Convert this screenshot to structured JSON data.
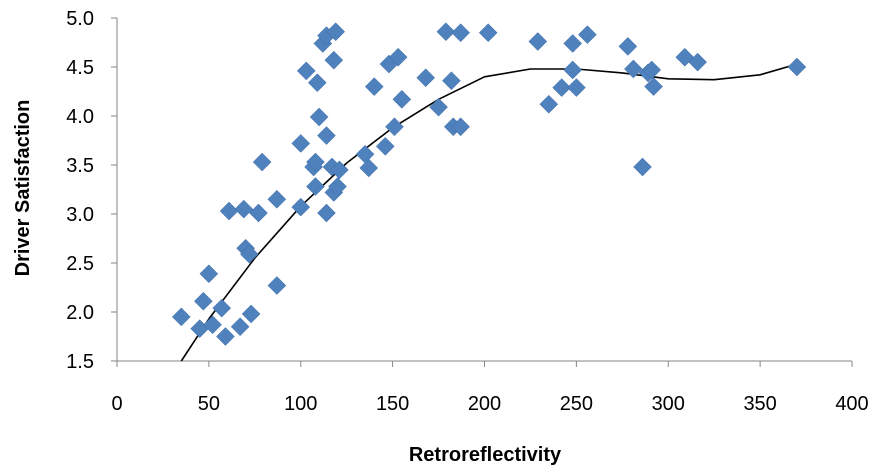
{
  "chart_data": {
    "type": "scatter",
    "xlabel": "Retroreflectivity",
    "ylabel": "Driver Satisfaction",
    "xlim": [
      0,
      400
    ],
    "ylim": [
      1.5,
      5.0
    ],
    "x_ticks": [
      0,
      50,
      100,
      150,
      200,
      250,
      300,
      350,
      400
    ],
    "y_ticks": [
      "1.5",
      "2.0",
      "2.5",
      "3.0",
      "3.5",
      "4.0",
      "4.5",
      "5.0"
    ],
    "grid": false,
    "legend": "none",
    "marker": "diamond",
    "marker_color": "#4F81BD",
    "trendline": {
      "type": "polynomial",
      "color": "#000000",
      "points": [
        [
          35,
          1.5
        ],
        [
          50,
          1.93
        ],
        [
          75,
          2.55
        ],
        [
          100,
          3.08
        ],
        [
          125,
          3.52
        ],
        [
          150,
          3.88
        ],
        [
          175,
          4.17
        ],
        [
          200,
          4.4
        ],
        [
          225,
          4.48
        ],
        [
          250,
          4.48
        ],
        [
          275,
          4.44
        ],
        [
          300,
          4.38
        ],
        [
          325,
          4.37
        ],
        [
          350,
          4.42
        ],
        [
          370,
          4.53
        ]
      ]
    },
    "points": [
      [
        35,
        1.95
      ],
      [
        45,
        1.83
      ],
      [
        47,
        2.11
      ],
      [
        50,
        2.39
      ],
      [
        52,
        1.87
      ],
      [
        57,
        2.04
      ],
      [
        59,
        1.75
      ],
      [
        61,
        3.03
      ],
      [
        67,
        1.85
      ],
      [
        69,
        3.05
      ],
      [
        70,
        2.65
      ],
      [
        72,
        2.59
      ],
      [
        73,
        1.98
      ],
      [
        77,
        3.01
      ],
      [
        79,
        3.53
      ],
      [
        87,
        3.15
      ],
      [
        87,
        2.27
      ],
      [
        100,
        3.72
      ],
      [
        100,
        3.07
      ],
      [
        103,
        4.46
      ],
      [
        107,
        3.48
      ],
      [
        108,
        3.53
      ],
      [
        108,
        3.28
      ],
      [
        109,
        4.34
      ],
      [
        110,
        3.99
      ],
      [
        112,
        4.74
      ],
      [
        114,
        4.82
      ],
      [
        114,
        3.01
      ],
      [
        114,
        3.8
      ],
      [
        117,
        3.48
      ],
      [
        118,
        4.57
      ],
      [
        118,
        3.22
      ],
      [
        119,
        4.86
      ],
      [
        120,
        3.28
      ],
      [
        121,
        3.45
      ],
      [
        135,
        3.61
      ],
      [
        137,
        3.47
      ],
      [
        140,
        4.3
      ],
      [
        146,
        3.69
      ],
      [
        148,
        4.53
      ],
      [
        151,
        3.89
      ],
      [
        153,
        4.6
      ],
      [
        155,
        4.17
      ],
      [
        168,
        4.39
      ],
      [
        175,
        4.09
      ],
      [
        179,
        4.86
      ],
      [
        182,
        4.36
      ],
      [
        183,
        3.89
      ],
      [
        187,
        4.85
      ],
      [
        187,
        3.89
      ],
      [
        202,
        4.85
      ],
      [
        229,
        4.76
      ],
      [
        235,
        4.12
      ],
      [
        242,
        4.29
      ],
      [
        248,
        4.74
      ],
      [
        248,
        4.47
      ],
      [
        250,
        4.29
      ],
      [
        256,
        4.83
      ],
      [
        278,
        4.71
      ],
      [
        281,
        4.48
      ],
      [
        286,
        3.48
      ],
      [
        289,
        4.44
      ],
      [
        291,
        4.47
      ],
      [
        292,
        4.3
      ],
      [
        309,
        4.6
      ],
      [
        316,
        4.55
      ],
      [
        370,
        4.5
      ]
    ]
  }
}
